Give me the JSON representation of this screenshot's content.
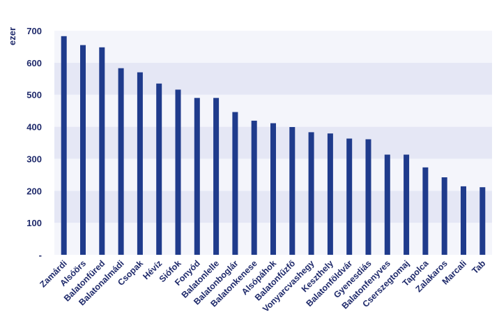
{
  "chart_data": {
    "type": "bar",
    "ylabel": "ezer",
    "ylim": [
      0,
      700
    ],
    "yticks": [
      0,
      100,
      200,
      300,
      400,
      500,
      600,
      700
    ],
    "ytick_labels": [
      "-",
      "100",
      "200",
      "300",
      "400",
      "500",
      "600",
      "700"
    ],
    "grid": "alternating horizontal bands",
    "categories": [
      "Zamárdi",
      "Alsóörs",
      "Balatonfüred",
      "Balatonalmádi",
      "Csopak",
      "Hévíz",
      "Siófok",
      "Fonyód",
      "Balatonlelle",
      "Balatonboglár",
      "Balatonkenese",
      "Alsópáhok",
      "Balatonfűzfő",
      "Vonyarcvashegy",
      "Keszthely",
      "Balatonföldvár",
      "Gyenesdiás",
      "Balatonfenyves",
      "Cserszegtomaj",
      "Tapolca",
      "Zalakaros",
      "Marcali",
      "Tab"
    ],
    "values": [
      683,
      655,
      648,
      583,
      570,
      535,
      516,
      490,
      490,
      446,
      419,
      411,
      399,
      383,
      379,
      363,
      361,
      313,
      313,
      273,
      242,
      214,
      211
    ],
    "colors": {
      "bar": "#1f3b8c",
      "band_dark": "#e5e7f5",
      "band_light": "#f4f5fb",
      "axis": "#1f2a6b"
    }
  }
}
